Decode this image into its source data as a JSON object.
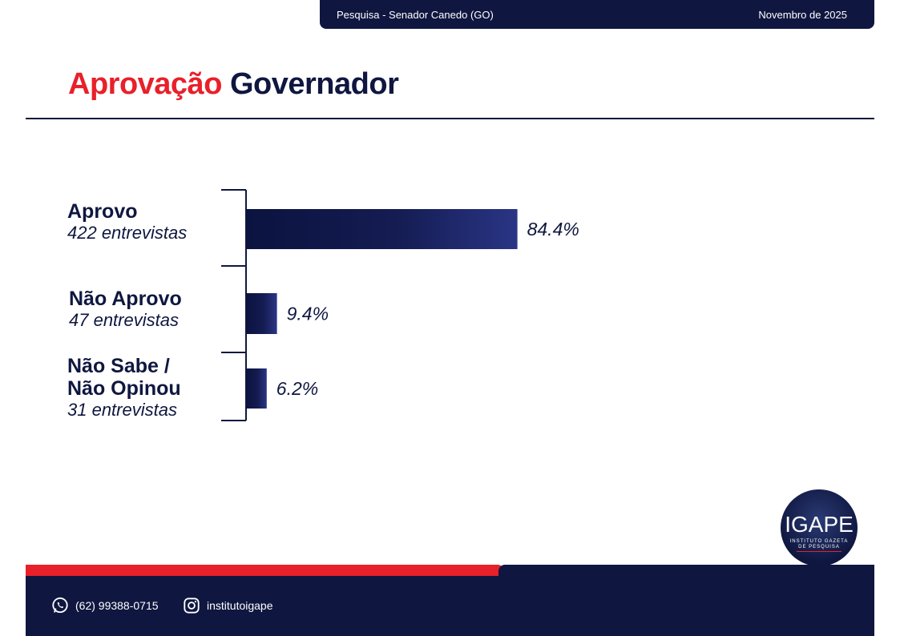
{
  "header": {
    "survey": "Pesquisa - Senador Canedo (GO)",
    "date": "Novembro de 2025"
  },
  "title": {
    "highlight": "Aprovação",
    "rest": "Governador"
  },
  "chart_data": {
    "type": "bar",
    "orientation": "horizontal",
    "title": "Aprovação Governador",
    "categories": [
      "Aprovo",
      "Não Aprovo",
      "Não Sabe / Não Opinou"
    ],
    "category_lines": [
      [
        "Aprovo"
      ],
      [
        "Não Aprovo"
      ],
      [
        "Não Sabe /",
        "Não Opinou"
      ]
    ],
    "subtitles": [
      "422 entrevistas",
      "47 entrevistas",
      "31 entrevistas"
    ],
    "values": [
      84.4,
      9.4,
      6.2
    ],
    "value_labels": [
      "84.4%",
      "9.4%",
      "6.2%"
    ],
    "xlim": [
      0,
      100
    ],
    "grid": false,
    "legend": "none",
    "bar_color": "#1c2569"
  },
  "logo": {
    "main": "IGAPE",
    "sub": "INSTITUTO GAZETA DE PESQUISA"
  },
  "footer": {
    "phone": "(62) 99388-0715",
    "instagram": "institutoigape",
    "phone_icon": "whatsapp-icon",
    "instagram_icon": "instagram-icon"
  },
  "colors": {
    "navy": "#0f1740",
    "red": "#e8202a"
  }
}
